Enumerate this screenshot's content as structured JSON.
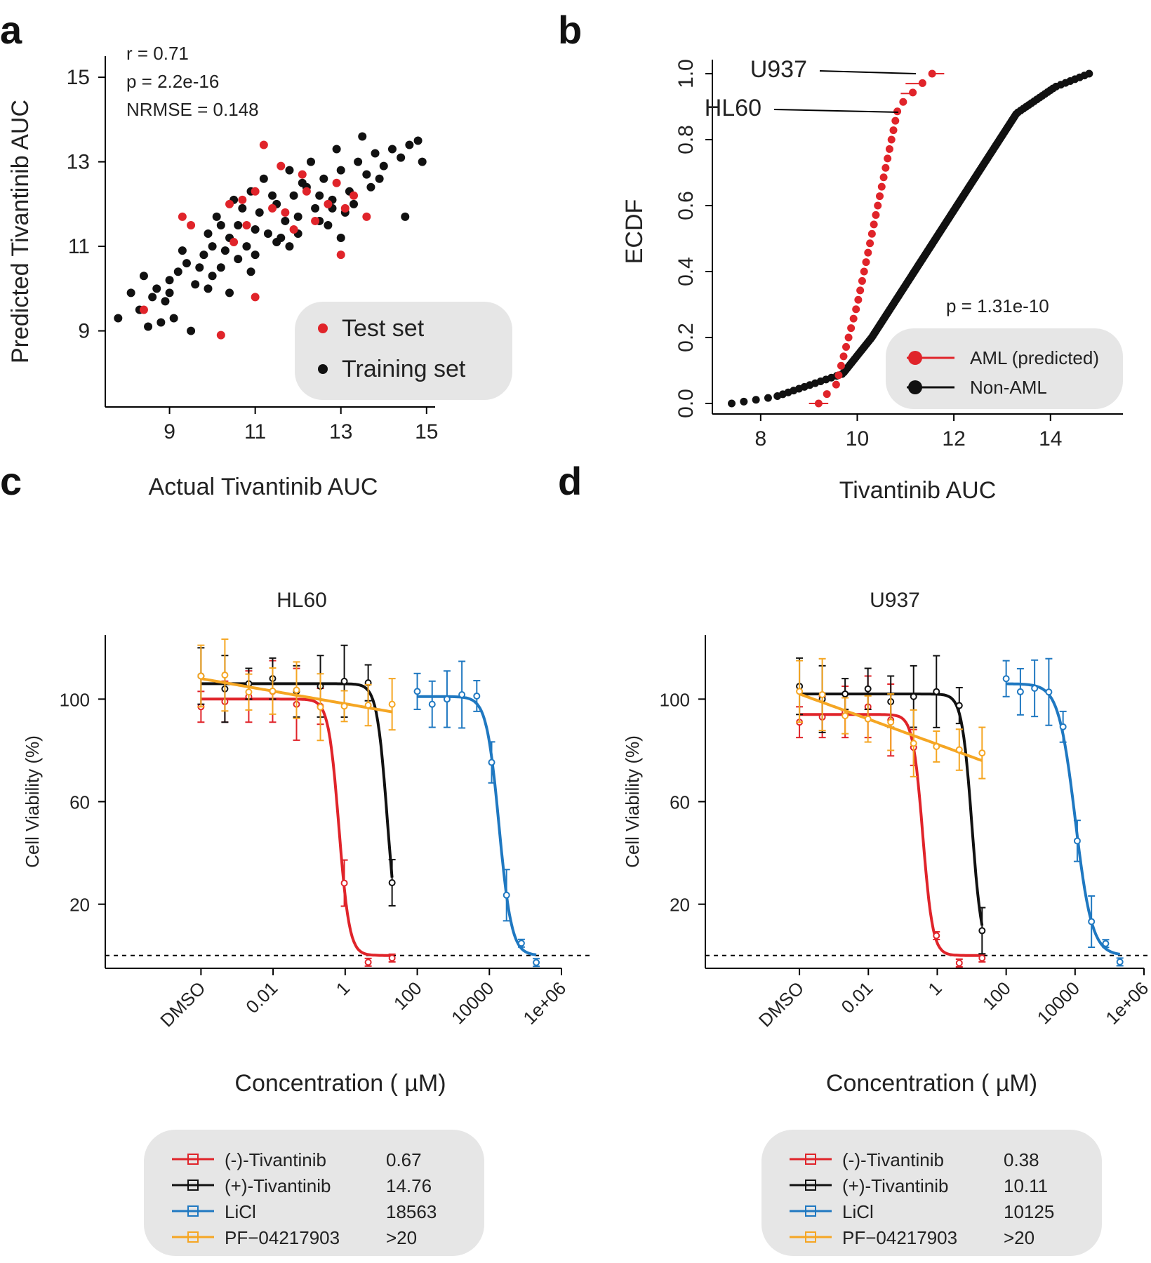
{
  "panels": {
    "a": "a",
    "b": "b",
    "c": "c",
    "d": "d"
  },
  "chart_data": [
    {
      "id": "a",
      "type": "scatter",
      "xlabel": "Actual Tivantinib AUC",
      "ylabel": "Predicted Tivantinib AUC",
      "xlim": [
        7.5,
        15.2
      ],
      "ylim": [
        7.2,
        15.5
      ],
      "xticks": [
        "9",
        "11",
        "13",
        "15"
      ],
      "yticks": [
        "9",
        "11",
        "13",
        "15"
      ],
      "stats": [
        "r = 0.71",
        "p = 2.2e-16",
        "NRMSE = 0.148"
      ],
      "legend": [
        {
          "label": "Test set",
          "color": "#e0242a"
        },
        {
          "label": "Training set",
          "color": "#111111"
        }
      ],
      "series": [
        {
          "name": "Training set",
          "color": "#111111",
          "points": [
            [
              8.3,
              9.5
            ],
            [
              8.6,
              9.8
            ],
            [
              8.7,
              10.0
            ],
            [
              9.0,
              10.2
            ],
            [
              8.9,
              9.7
            ],
            [
              9.2,
              10.4
            ],
            [
              9.4,
              10.6
            ],
            [
              9.6,
              10.1
            ],
            [
              9.8,
              10.8
            ],
            [
              10.0,
              11.0
            ],
            [
              10.2,
              10.5
            ],
            [
              10.4,
              11.2
            ],
            [
              10.6,
              11.5
            ],
            [
              10.8,
              11.0
            ],
            [
              11.0,
              11.4
            ],
            [
              11.1,
              11.8
            ],
            [
              11.3,
              11.3
            ],
            [
              11.5,
              12.0
            ],
            [
              11.7,
              11.6
            ],
            [
              11.9,
              12.2
            ],
            [
              12.0,
              11.7
            ],
            [
              12.2,
              12.4
            ],
            [
              12.4,
              11.9
            ],
            [
              12.6,
              12.6
            ],
            [
              12.8,
              12.1
            ],
            [
              13.0,
              12.8
            ],
            [
              13.2,
              12.3
            ],
            [
              13.4,
              13.0
            ],
            [
              13.6,
              12.7
            ],
            [
              13.8,
              13.2
            ],
            [
              14.0,
              12.9
            ],
            [
              14.2,
              13.3
            ],
            [
              14.4,
              13.1
            ],
            [
              14.6,
              13.4
            ],
            [
              14.8,
              13.5
            ],
            [
              7.8,
              9.3
            ],
            [
              8.1,
              9.9
            ],
            [
              8.4,
              10.3
            ],
            [
              8.8,
              9.2
            ],
            [
              9.1,
              9.3
            ],
            [
              9.5,
              9.0
            ],
            [
              9.7,
              10.5
            ],
            [
              9.9,
              11.3
            ],
            [
              10.1,
              11.7
            ],
            [
              10.3,
              10.9
            ],
            [
              10.5,
              12.1
            ],
            [
              10.7,
              11.9
            ],
            [
              10.9,
              12.3
            ],
            [
              11.2,
              12.6
            ],
            [
              11.4,
              12.2
            ],
            [
              11.6,
              11.2
            ],
            [
              11.8,
              12.8
            ],
            [
              12.1,
              12.5
            ],
            [
              12.3,
              13.0
            ],
            [
              12.5,
              12.2
            ],
            [
              12.7,
              11.5
            ],
            [
              12.9,
              13.3
            ],
            [
              13.1,
              11.8
            ],
            [
              13.3,
              12.0
            ],
            [
              13.5,
              13.6
            ],
            [
              14.5,
              11.7
            ],
            [
              14.9,
              13.0
            ],
            [
              10.0,
              10.3
            ],
            [
              10.6,
              10.7
            ],
            [
              11.0,
              10.8
            ],
            [
              11.5,
              11.1
            ],
            [
              12.0,
              11.3
            ],
            [
              12.5,
              11.6
            ],
            [
              13.0,
              11.2
            ],
            [
              13.7,
              12.4
            ],
            [
              9.3,
              10.9
            ],
            [
              9.9,
              10.0
            ],
            [
              10.4,
              9.9
            ],
            [
              10.9,
              10.4
            ],
            [
              11.8,
              11.0
            ],
            [
              12.8,
              11.9
            ],
            [
              13.9,
              12.6
            ],
            [
              8.5,
              9.1
            ],
            [
              9.0,
              9.9
            ],
            [
              10.2,
              11.5
            ]
          ]
        },
        {
          "name": "Test set",
          "color": "#e0242a",
          "points": [
            [
              8.4,
              9.5
            ],
            [
              9.3,
              11.7
            ],
            [
              9.5,
              11.5
            ],
            [
              10.2,
              8.9
            ],
            [
              10.4,
              12.0
            ],
            [
              10.7,
              12.1
            ],
            [
              11.0,
              12.3
            ],
            [
              11.2,
              13.4
            ],
            [
              11.4,
              11.9
            ],
            [
              11.7,
              11.8
            ],
            [
              12.1,
              12.7
            ],
            [
              12.4,
              11.6
            ],
            [
              12.7,
              12.0
            ],
            [
              13.0,
              10.8
            ],
            [
              13.1,
              11.9
            ],
            [
              13.3,
              12.2
            ],
            [
              13.6,
              11.7
            ],
            [
              11.0,
              9.8
            ],
            [
              10.5,
              11.1
            ],
            [
              12.2,
              12.3
            ],
            [
              11.6,
              12.9
            ],
            [
              12.9,
              12.5
            ],
            [
              10.8,
              11.5
            ],
            [
              11.9,
              11.4
            ]
          ]
        }
      ]
    },
    {
      "id": "b",
      "type": "ecdf",
      "xlabel": "Tivantinib AUC",
      "ylabel": "ECDF",
      "xlim": [
        7.0,
        15.5
      ],
      "ylim": [
        0.0,
        1.0
      ],
      "xticks": [
        "8",
        "10",
        "12",
        "14"
      ],
      "yticks": [
        "0.0",
        "0.2",
        "0.4",
        "0.6",
        "0.8",
        "1.0"
      ],
      "stat": "p = 1.31e-10",
      "annotations": [
        "U937",
        "HL60"
      ],
      "legend": [
        {
          "label": "AML (predicted)",
          "color": "#e0242a"
        },
        {
          "label": "Non-AML",
          "color": "#111111"
        }
      ],
      "series": [
        {
          "name": "AML (predicted)",
          "color": "#e0242a",
          "min": 9.0,
          "max": 11.6
        },
        {
          "name": "Non-AML",
          "color": "#111111",
          "min": 7.4,
          "max": 14.8
        }
      ]
    },
    {
      "id": "c",
      "type": "line",
      "title": "HL60",
      "xlabel": "Concentration ( µM)",
      "ylabel": "Cell Viability (%)",
      "xticks": [
        "DMSO",
        "0.01",
        "1",
        "100",
        "10000",
        "1e+06"
      ],
      "yticks": [
        "20",
        "60",
        "100"
      ],
      "legend": [
        {
          "label": "(-)-Tivantinib",
          "value": "0.67",
          "color": "#e0242a",
          "marker": "square"
        },
        {
          "label": "(+)-Tivantinib",
          "value": "14.76",
          "color": "#111111",
          "marker": "triangle"
        },
        {
          "label": "LiCl",
          "value": "18563",
          "color": "#1f78c1",
          "marker": "circle"
        },
        {
          "label": "PF−04217903",
          "value": ">20",
          "color": "#f5a623",
          "marker": "down-triangle"
        }
      ],
      "curves": [
        {
          "name": "(-)-Tivantinib",
          "type": "sigmoid",
          "top": 100,
          "bottom": 0,
          "ic50": 0.67,
          "hill": 3.0,
          "xrange": [
            0.0001,
            20
          ]
        },
        {
          "name": "(+)-Tivantinib",
          "type": "sigmoid",
          "top": 106,
          "bottom": 0,
          "ic50": 14.76,
          "hill": 3.0,
          "xrange": [
            0.0001,
            20
          ]
        },
        {
          "name": "LiCl",
          "type": "sigmoid",
          "top": 101,
          "bottom": 0,
          "ic50": 18563,
          "hill": 2.5,
          "xrange": [
            100,
            200000
          ]
        },
        {
          "name": "PF−04217903",
          "type": "linear",
          "start": 108,
          "end": 95,
          "xrange": [
            0.0001,
            20
          ]
        }
      ]
    },
    {
      "id": "d",
      "type": "line",
      "title": "U937",
      "xlabel": "Concentration ( µM)",
      "ylabel": "Cell Viability (%)",
      "xticks": [
        "DMSO",
        "0.01",
        "1",
        "100",
        "10000",
        "1e+06"
      ],
      "yticks": [
        "20",
        "60",
        "100"
      ],
      "legend": [
        {
          "label": "(-)-Tivantinib",
          "value": "0.38",
          "color": "#e0242a",
          "marker": "square"
        },
        {
          "label": "(+)-Tivantinib",
          "value": "10.11",
          "color": "#111111",
          "marker": "triangle"
        },
        {
          "label": "LiCl",
          "value": "10125",
          "color": "#1f78c1",
          "marker": "circle"
        },
        {
          "label": "PF−04217903",
          "value": ">20",
          "color": "#f5a623",
          "marker": "down-triangle"
        }
      ],
      "curves": [
        {
          "name": "(-)-Tivantinib",
          "type": "sigmoid",
          "top": 94,
          "bottom": 0,
          "ic50": 0.38,
          "hill": 3.0,
          "xrange": [
            0.0001,
            20
          ]
        },
        {
          "name": "(+)-Tivantinib",
          "type": "sigmoid",
          "top": 102,
          "bottom": 0,
          "ic50": 10.11,
          "hill": 3.0,
          "xrange": [
            0.0001,
            20
          ]
        },
        {
          "name": "LiCl",
          "type": "sigmoid",
          "top": 106,
          "bottom": 0,
          "ic50": 10125,
          "hill": 1.8,
          "xrange": [
            100,
            200000
          ]
        },
        {
          "name": "PF−04217903",
          "type": "linear",
          "start": 102,
          "end": 76,
          "xrange": [
            0.0001,
            20
          ]
        }
      ]
    }
  ]
}
